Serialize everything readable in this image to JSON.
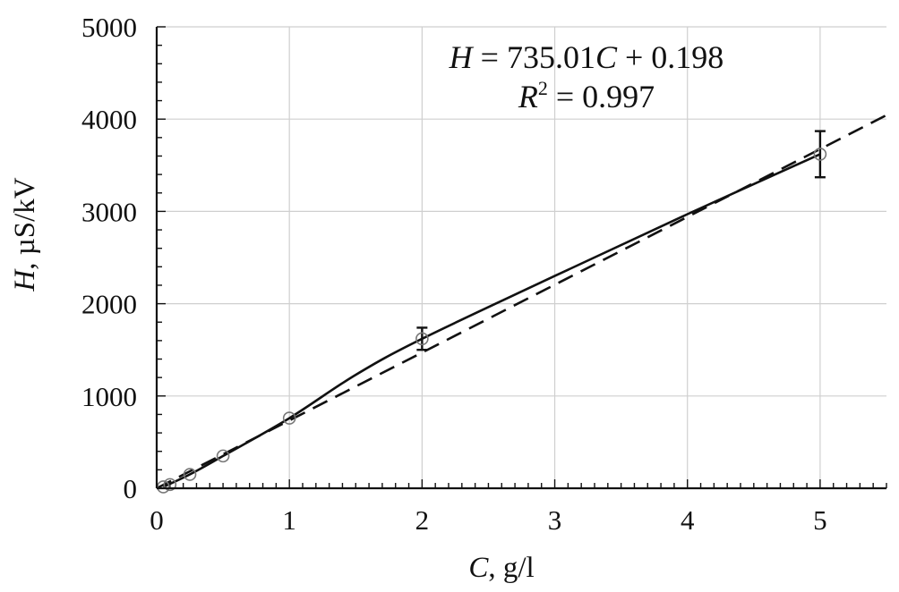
{
  "chart_data": {
    "type": "scatter",
    "xlabel": {
      "var": "C",
      "rest": ", g/l"
    },
    "ylabel": {
      "var": "H",
      "rest": ", µS/kV"
    },
    "xlim": [
      0,
      5.5
    ],
    "ylim": [
      0,
      5000
    ],
    "x_ticks": [
      0,
      1,
      2,
      3,
      4,
      5
    ],
    "y_ticks": [
      0,
      1000,
      2000,
      3000,
      4000,
      5000
    ],
    "x_tick_labels": [
      "0",
      "1",
      "2",
      "3",
      "4",
      "5"
    ],
    "y_tick_labels": [
      "0",
      "1000",
      "2000",
      "3000",
      "4000",
      "5000"
    ],
    "grid": true,
    "series": [
      {
        "kind": "points",
        "marker": "open-circle",
        "x": [
          0.05,
          0.1,
          0.25,
          0.5,
          1,
          2,
          5
        ],
        "y": [
          15,
          40,
          150,
          350,
          760,
          1620,
          3620
        ],
        "error": [
          0,
          0,
          0,
          0,
          0,
          120,
          250
        ]
      },
      {
        "kind": "smooth-curve",
        "line": "solid",
        "x": [
          0.05,
          0.25,
          0.5,
          1,
          1.5,
          2,
          3,
          4,
          5
        ],
        "y": [
          15,
          150,
          350,
          760,
          1230,
          1620,
          2300,
          2970,
          3620
        ]
      },
      {
        "kind": "linear-fit",
        "line": "dashed",
        "slope": 735.01,
        "intercept": 0.198,
        "x": [
          0,
          5.5
        ]
      }
    ],
    "annotation": {
      "equation": {
        "lhs": "H",
        "mid": " = 735.01",
        "var": "C",
        "rhs": " + 0.198"
      },
      "r2": {
        "var": "R",
        "sup": "2",
        "rhs": " = 0.997"
      }
    }
  }
}
